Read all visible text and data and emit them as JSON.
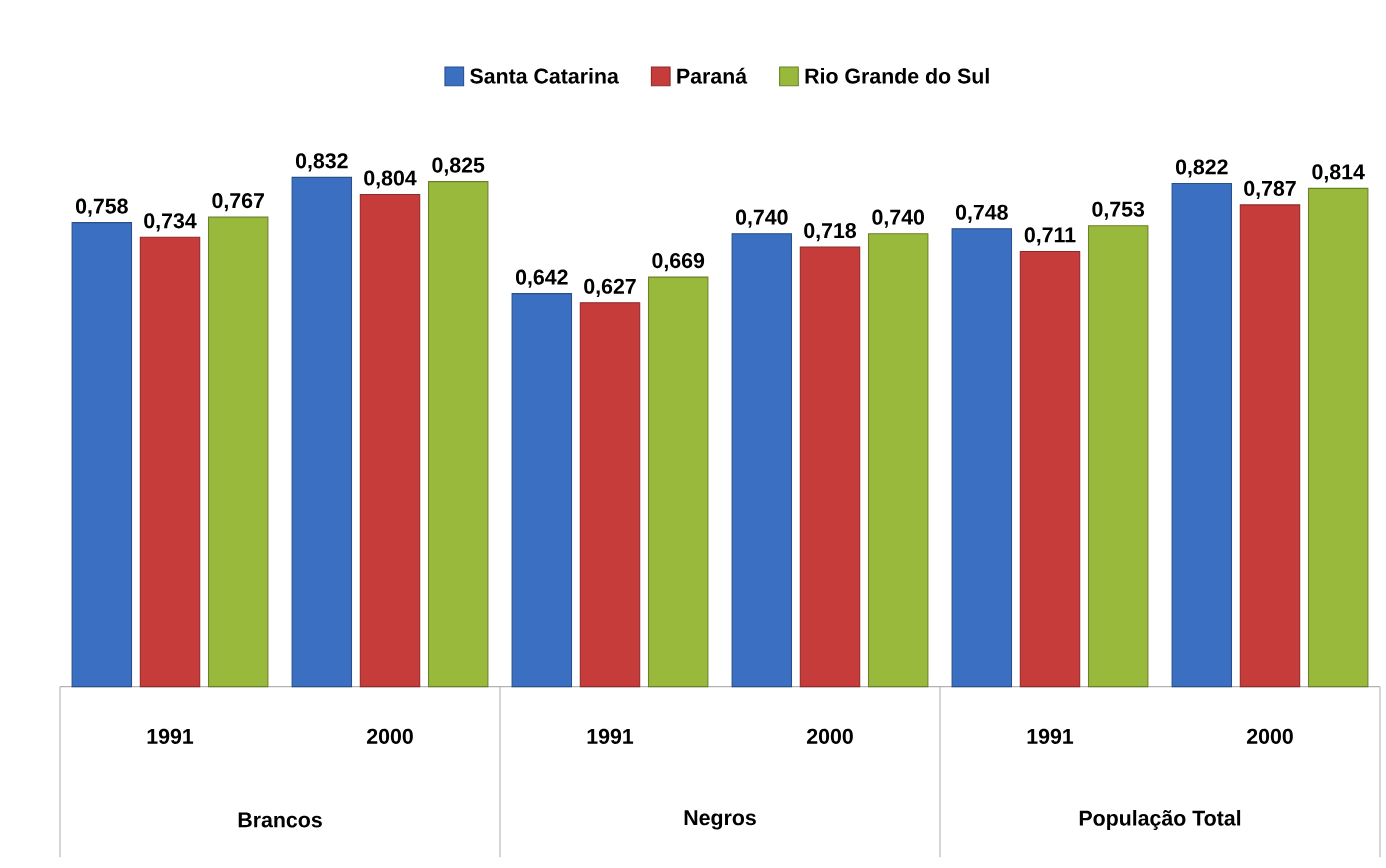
{
  "chart_data": {
    "type": "bar",
    "categories": [
      "1991",
      "2000",
      "1991",
      "2000",
      "1991",
      "2000"
    ],
    "annotations": [
      "Brancos",
      "Negros",
      "População Total"
    ],
    "series": [
      {
        "name": "Santa Catarina",
        "color": "#3b6fc2",
        "values": [
          0.758,
          0.832,
          0.642,
          0.74,
          0.748,
          0.822
        ],
        "value_labels": [
          "0,758",
          "0,832",
          "0,642",
          "0,740",
          "0,748",
          "0,822"
        ]
      },
      {
        "name": "Paraná",
        "color": "#c63c3a",
        "values": [
          0.734,
          0.804,
          0.627,
          0.718,
          0.711,
          0.787
        ],
        "value_labels": [
          "0,734",
          "0,804",
          "0,627",
          "0,718",
          "0,711",
          "0,787"
        ]
      },
      {
        "name": "Rio Grande do Sul",
        "color": "#98b93c",
        "values": [
          0.767,
          0.825,
          0.669,
          0.74,
          0.753,
          0.814
        ],
        "value_labels": [
          "0,767",
          "0,825",
          "0,669",
          "0,740",
          "0,753",
          "0,814"
        ]
      }
    ],
    "legend": "top"
  }
}
